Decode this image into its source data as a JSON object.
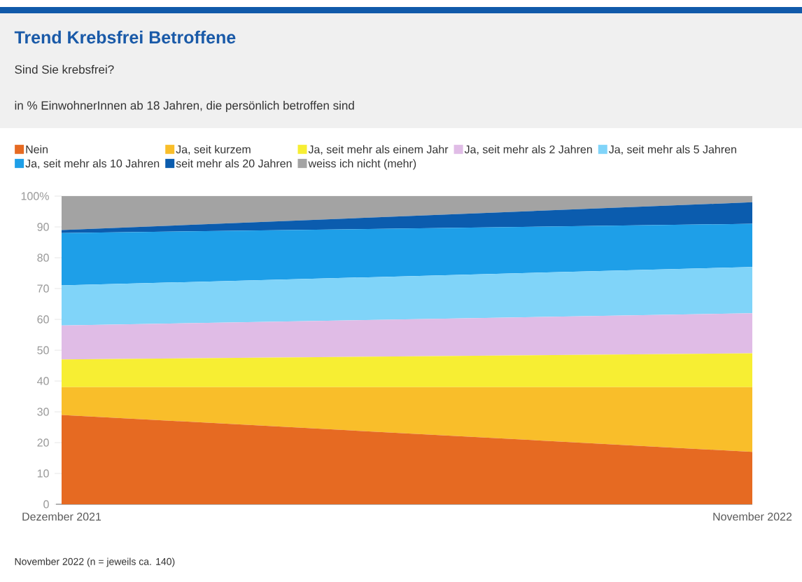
{
  "chart_data": {
    "type": "area",
    "stacked": true,
    "title": "Trend Krebsfrei Betroffene",
    "subtitle": "Sind Sie krebsfrei?",
    "annotations": [
      "in % EinwohnerInnen ab 18 Jahren, die persönlich betroffen sind",
      "November 2022 (n = jeweils ca. 140)"
    ],
    "x": [
      "2021-12",
      "2022-11"
    ],
    "xlim": [
      "2021-12",
      "2022-11"
    ],
    "xticks": [
      {
        "value": "2021-12",
        "label": "Dezember 2021"
      },
      {
        "value": "2022-11",
        "label": "November 2022"
      }
    ],
    "ylim": [
      0,
      100
    ],
    "yticks": [
      0,
      10,
      20,
      30,
      40,
      50,
      60,
      70,
      80,
      90,
      {
        "value": 100,
        "label": "100%"
      }
    ],
    "grid": "y",
    "legend": "top left",
    "series": [
      {
        "name": "Nein",
        "color": "#e66a22",
        "values": [
          29,
          17
        ]
      },
      {
        "name": "Ja, seit kurzem",
        "color": "#f9be2a",
        "values": [
          9,
          21
        ]
      },
      {
        "name": "Ja, seit mehr als einem Jahr",
        "color": "#f7ee33",
        "values": [
          9,
          11
        ]
      },
      {
        "name": "Ja, seit mehr als 2 Jahren",
        "color": "#e0bce6",
        "values": [
          11,
          13
        ]
      },
      {
        "name": "Ja, seit mehr als 5 Jahren",
        "color": "#80d4f9",
        "values": [
          13,
          15
        ]
      },
      {
        "name": "Ja, seit mehr als 10 Jahren",
        "color": "#1e9fe8",
        "values": [
          17,
          14
        ]
      },
      {
        "name": "seit mehr als 20 Jahren",
        "color": "#0b5cae",
        "values": [
          1,
          7
        ]
      },
      {
        "name": "weiss ich nicht (mehr)",
        "color": "#a3a3a3",
        "values": [
          11,
          2
        ]
      }
    ]
  }
}
